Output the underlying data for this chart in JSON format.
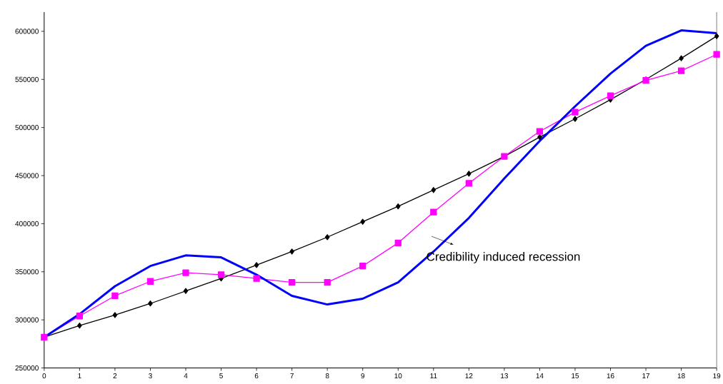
{
  "chart_data": {
    "type": "line",
    "x": [
      0,
      1,
      2,
      3,
      4,
      5,
      6,
      7,
      8,
      9,
      10,
      11,
      12,
      13,
      14,
      15,
      16,
      17,
      18,
      19
    ],
    "series": [
      {
        "color": "#000000",
        "marker": "diamond",
        "values": [
          282000,
          294000,
          305000,
          317000,
          330000,
          343000,
          357000,
          371000,
          386000,
          402000,
          418000,
          435000,
          452000,
          470000,
          490000,
          509000,
          529000,
          550000,
          572000,
          595000
        ]
      },
      {
        "color": "#ff00ff",
        "marker": "square",
        "values": [
          282000,
          304000,
          325000,
          340000,
          349000,
          347000,
          343000,
          339000,
          339000,
          356000,
          380000,
          412000,
          442000,
          470000,
          496000,
          516000,
          533000,
          549000,
          559000,
          576000
        ]
      },
      {
        "color": "#0000ff",
        "marker": "none",
        "values": [
          282000,
          306000,
          335000,
          356000,
          367000,
          365000,
          347000,
          325000,
          316000,
          322000,
          339000,
          371000,
          406000,
          447000,
          486000,
          522000,
          556000,
          585000,
          601000,
          598000
        ]
      }
    ],
    "xlim": [
      0,
      19
    ],
    "xticks": [
      0,
      1,
      2,
      3,
      4,
      5,
      6,
      7,
      8,
      9,
      10,
      11,
      12,
      13,
      14,
      15,
      16,
      17,
      18,
      19
    ],
    "ylim": [
      250000,
      620000
    ],
    "yticks": [
      250000,
      300000,
      350000,
      400000,
      450000,
      500000,
      550000,
      600000
    ],
    "grid": false,
    "line_style": "solid",
    "annotations": [
      "Credibility induced recession"
    ]
  }
}
